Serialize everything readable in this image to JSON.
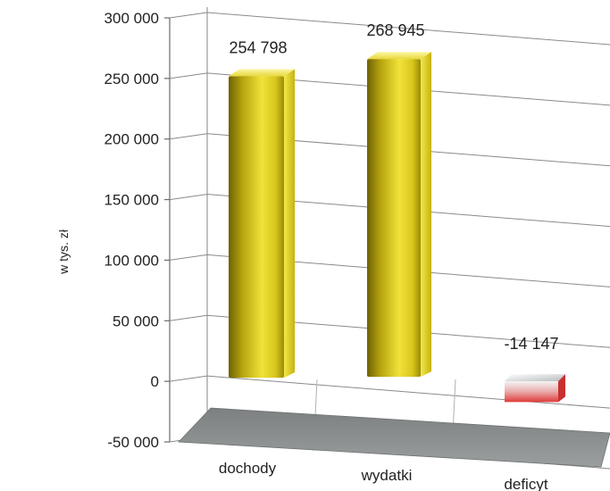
{
  "chart_data": {
    "type": "bar",
    "categories": [
      "dochody",
      "wydatki",
      "deficyt"
    ],
    "values": [
      254798,
      268945,
      -14147
    ],
    "data_labels": [
      "254 798",
      "268 945",
      "-14 147"
    ],
    "ylabel": "w tys. zł",
    "ylim": [
      -50000,
      300000
    ],
    "yticks": [
      300000,
      250000,
      200000,
      150000,
      100000,
      50000,
      0,
      -50000
    ],
    "ytick_labels": [
      "300 000",
      "250 000",
      "200 000",
      "150 000",
      "100 000",
      "50 000",
      "0",
      "-50 000"
    ],
    "grid": true,
    "three_d": true,
    "colors": {
      "dochody": "#e6d21a",
      "wydatki": "#e6d21a",
      "deficyt": "#e84a4a",
      "floor": "#8c9090"
    }
  }
}
